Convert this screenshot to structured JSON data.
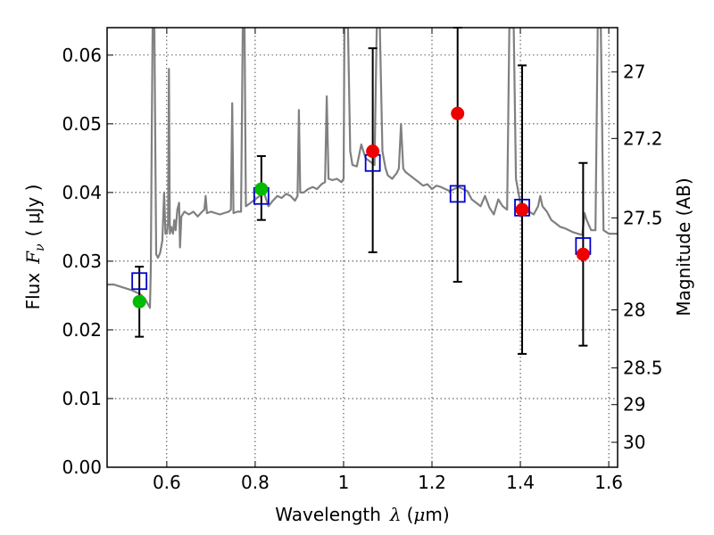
{
  "chart_data": {
    "type": "scatter",
    "title": "",
    "xlabel": {
      "prefix": "Wavelength",
      "symbol": "λ",
      "unit_open": "(",
      "unit_mu": "μ",
      "unit_rest": "m)"
    },
    "ylabel": {
      "prefix": "Flux",
      "symbol": "F",
      "subscript": "ν",
      "unit": "( μJy )"
    },
    "y2label": "Magnitude (AB)",
    "xlim": [
      0.465,
      1.62
    ],
    "ylim": [
      0.0,
      0.064
    ],
    "x_ticks": [
      0.6,
      0.8,
      1.0,
      1.2,
      1.4,
      1.6
    ],
    "x_tick_labels": [
      "0.6",
      "0.8",
      "1",
      "1.2",
      "1.4",
      "1.6"
    ],
    "y_ticks": [
      0.0,
      0.01,
      0.02,
      0.03,
      0.04,
      0.05,
      0.06
    ],
    "y_tick_labels": [
      "0.00",
      "0.01",
      "0.02",
      "0.03",
      "0.04",
      "0.05",
      "0.06"
    ],
    "y2_ticks": [
      {
        "value": 27.0,
        "label": "27"
      },
      {
        "value": 27.2,
        "label": "27.2"
      },
      {
        "value": 27.5,
        "label": "27.5"
      },
      {
        "value": 28.0,
        "label": "28"
      },
      {
        "value": 28.5,
        "label": "28.5"
      },
      {
        "value": 29.0,
        "label": "29"
      },
      {
        "value": 30.0,
        "label": "30"
      }
    ],
    "grid": true,
    "colors": {
      "spectrum": "#808080",
      "model": "#0000cc",
      "green": "#00bb00",
      "red": "#ee0000",
      "errorbar": "#000000"
    },
    "spectrum": {
      "name": "",
      "points": [
        [
          0.465,
          0.0266
        ],
        [
          0.48,
          0.0266
        ],
        [
          0.5,
          0.0262
        ],
        [
          0.52,
          0.0258
        ],
        [
          0.54,
          0.0252
        ],
        [
          0.55,
          0.0246
        ],
        [
          0.557,
          0.0238
        ],
        [
          0.562,
          0.0232
        ],
        [
          0.564,
          0.029
        ],
        [
          0.566,
          0.048
        ],
        [
          0.568,
          0.064
        ],
        [
          0.572,
          0.064
        ],
        [
          0.574,
          0.047
        ],
        [
          0.576,
          0.031
        ],
        [
          0.58,
          0.0305
        ],
        [
          0.585,
          0.0312
        ],
        [
          0.59,
          0.033
        ],
        [
          0.594,
          0.04
        ],
        [
          0.597,
          0.034
        ],
        [
          0.6,
          0.034
        ],
        [
          0.603,
          0.0355
        ],
        [
          0.605,
          0.058
        ],
        [
          0.607,
          0.034
        ],
        [
          0.61,
          0.035
        ],
        [
          0.614,
          0.034
        ],
        [
          0.617,
          0.036
        ],
        [
          0.62,
          0.0345
        ],
        [
          0.624,
          0.0375
        ],
        [
          0.628,
          0.0385
        ],
        [
          0.63,
          0.032
        ],
        [
          0.633,
          0.0365
        ],
        [
          0.64,
          0.0372
        ],
        [
          0.65,
          0.0368
        ],
        [
          0.66,
          0.0372
        ],
        [
          0.67,
          0.0365
        ],
        [
          0.68,
          0.0372
        ],
        [
          0.685,
          0.0375
        ],
        [
          0.688,
          0.0395
        ],
        [
          0.691,
          0.037
        ],
        [
          0.7,
          0.0372
        ],
        [
          0.72,
          0.0368
        ],
        [
          0.74,
          0.0372
        ],
        [
          0.745,
          0.0375
        ],
        [
          0.748,
          0.053
        ],
        [
          0.751,
          0.037
        ],
        [
          0.76,
          0.0372
        ],
        [
          0.768,
          0.0372
        ],
        [
          0.772,
          0.064
        ],
        [
          0.776,
          0.064
        ],
        [
          0.779,
          0.038
        ],
        [
          0.79,
          0.0385
        ],
        [
          0.8,
          0.039
        ],
        [
          0.81,
          0.0395
        ],
        [
          0.82,
          0.04
        ],
        [
          0.83,
          0.038
        ],
        [
          0.84,
          0.0388
        ],
        [
          0.85,
          0.0395
        ],
        [
          0.86,
          0.0392
        ],
        [
          0.87,
          0.0398
        ],
        [
          0.88,
          0.0395
        ],
        [
          0.89,
          0.0388
        ],
        [
          0.896,
          0.0395
        ],
        [
          0.899,
          0.052
        ],
        [
          0.902,
          0.04
        ],
        [
          0.91,
          0.04
        ],
        [
          0.92,
          0.0405
        ],
        [
          0.93,
          0.0408
        ],
        [
          0.94,
          0.0405
        ],
        [
          0.95,
          0.0412
        ],
        [
          0.958,
          0.0415
        ],
        [
          0.962,
          0.054
        ],
        [
          0.966,
          0.042
        ],
        [
          0.975,
          0.0418
        ],
        [
          0.985,
          0.042
        ],
        [
          0.995,
          0.0415
        ],
        [
          1.0,
          0.042
        ],
        [
          1.002,
          0.064
        ],
        [
          1.01,
          0.064
        ],
        [
          1.015,
          0.046
        ],
        [
          1.02,
          0.044
        ],
        [
          1.03,
          0.0438
        ],
        [
          1.04,
          0.047
        ],
        [
          1.045,
          0.046
        ],
        [
          1.05,
          0.045
        ],
        [
          1.06,
          0.0445
        ],
        [
          1.07,
          0.044
        ],
        [
          1.075,
          0.064
        ],
        [
          1.082,
          0.064
        ],
        [
          1.088,
          0.046
        ],
        [
          1.095,
          0.0435
        ],
        [
          1.1,
          0.0425
        ],
        [
          1.11,
          0.042
        ],
        [
          1.12,
          0.0428
        ],
        [
          1.125,
          0.0435
        ],
        [
          1.13,
          0.05
        ],
        [
          1.135,
          0.0435
        ],
        [
          1.14,
          0.043
        ],
        [
          1.15,
          0.0425
        ],
        [
          1.16,
          0.042
        ],
        [
          1.17,
          0.0415
        ],
        [
          1.18,
          0.041
        ],
        [
          1.19,
          0.0412
        ],
        [
          1.2,
          0.0405
        ],
        [
          1.21,
          0.041
        ],
        [
          1.22,
          0.0408
        ],
        [
          1.23,
          0.0405
        ],
        [
          1.24,
          0.0402
        ],
        [
          1.25,
          0.0405
        ],
        [
          1.26,
          0.0408
        ],
        [
          1.27,
          0.0405
        ],
        [
          1.28,
          0.0402
        ],
        [
          1.29,
          0.039
        ],
        [
          1.3,
          0.0385
        ],
        [
          1.31,
          0.038
        ],
        [
          1.32,
          0.0395
        ],
        [
          1.33,
          0.0378
        ],
        [
          1.34,
          0.0368
        ],
        [
          1.35,
          0.039
        ],
        [
          1.36,
          0.038
        ],
        [
          1.37,
          0.0375
        ],
        [
          1.375,
          0.064
        ],
        [
          1.385,
          0.064
        ],
        [
          1.39,
          0.042
        ],
        [
          1.4,
          0.0385
        ],
        [
          1.41,
          0.0375
        ],
        [
          1.42,
          0.0372
        ],
        [
          1.43,
          0.0368
        ],
        [
          1.44,
          0.038
        ],
        [
          1.445,
          0.0395
        ],
        [
          1.45,
          0.038
        ],
        [
          1.46,
          0.0372
        ],
        [
          1.47,
          0.036
        ],
        [
          1.48,
          0.0355
        ],
        [
          1.49,
          0.035
        ],
        [
          1.5,
          0.0348
        ],
        [
          1.51,
          0.0345
        ],
        [
          1.52,
          0.0342
        ],
        [
          1.53,
          0.034
        ],
        [
          1.54,
          0.0338
        ],
        [
          1.545,
          0.037
        ],
        [
          1.55,
          0.036
        ],
        [
          1.56,
          0.0345
        ],
        [
          1.57,
          0.0345
        ],
        [
          1.575,
          0.064
        ],
        [
          1.582,
          0.064
        ],
        [
          1.588,
          0.0345
        ],
        [
          1.6,
          0.034
        ],
        [
          1.62,
          0.034
        ]
      ]
    },
    "model_points": {
      "name": "",
      "x": [
        0.538,
        0.814,
        1.066,
        1.258,
        1.404,
        1.542
      ],
      "y": [
        0.0271,
        0.0395,
        0.0443,
        0.0398,
        0.0378,
        0.0322
      ]
    },
    "green_points": {
      "name": "",
      "x": [
        0.538,
        0.814
      ],
      "y": [
        0.0241,
        0.0405
      ],
      "err_low": [
        0.019,
        0.036
      ],
      "err_high": [
        0.0292,
        0.0453
      ]
    },
    "red_points": {
      "name": "",
      "x": [
        1.066,
        1.258,
        1.404,
        1.542
      ],
      "y": [
        0.046,
        0.0515,
        0.0375,
        0.031
      ],
      "err_low": [
        0.0313,
        0.027,
        0.0165,
        0.0177
      ],
      "err_high": [
        0.061,
        0.064,
        0.0585,
        0.0443
      ]
    }
  }
}
